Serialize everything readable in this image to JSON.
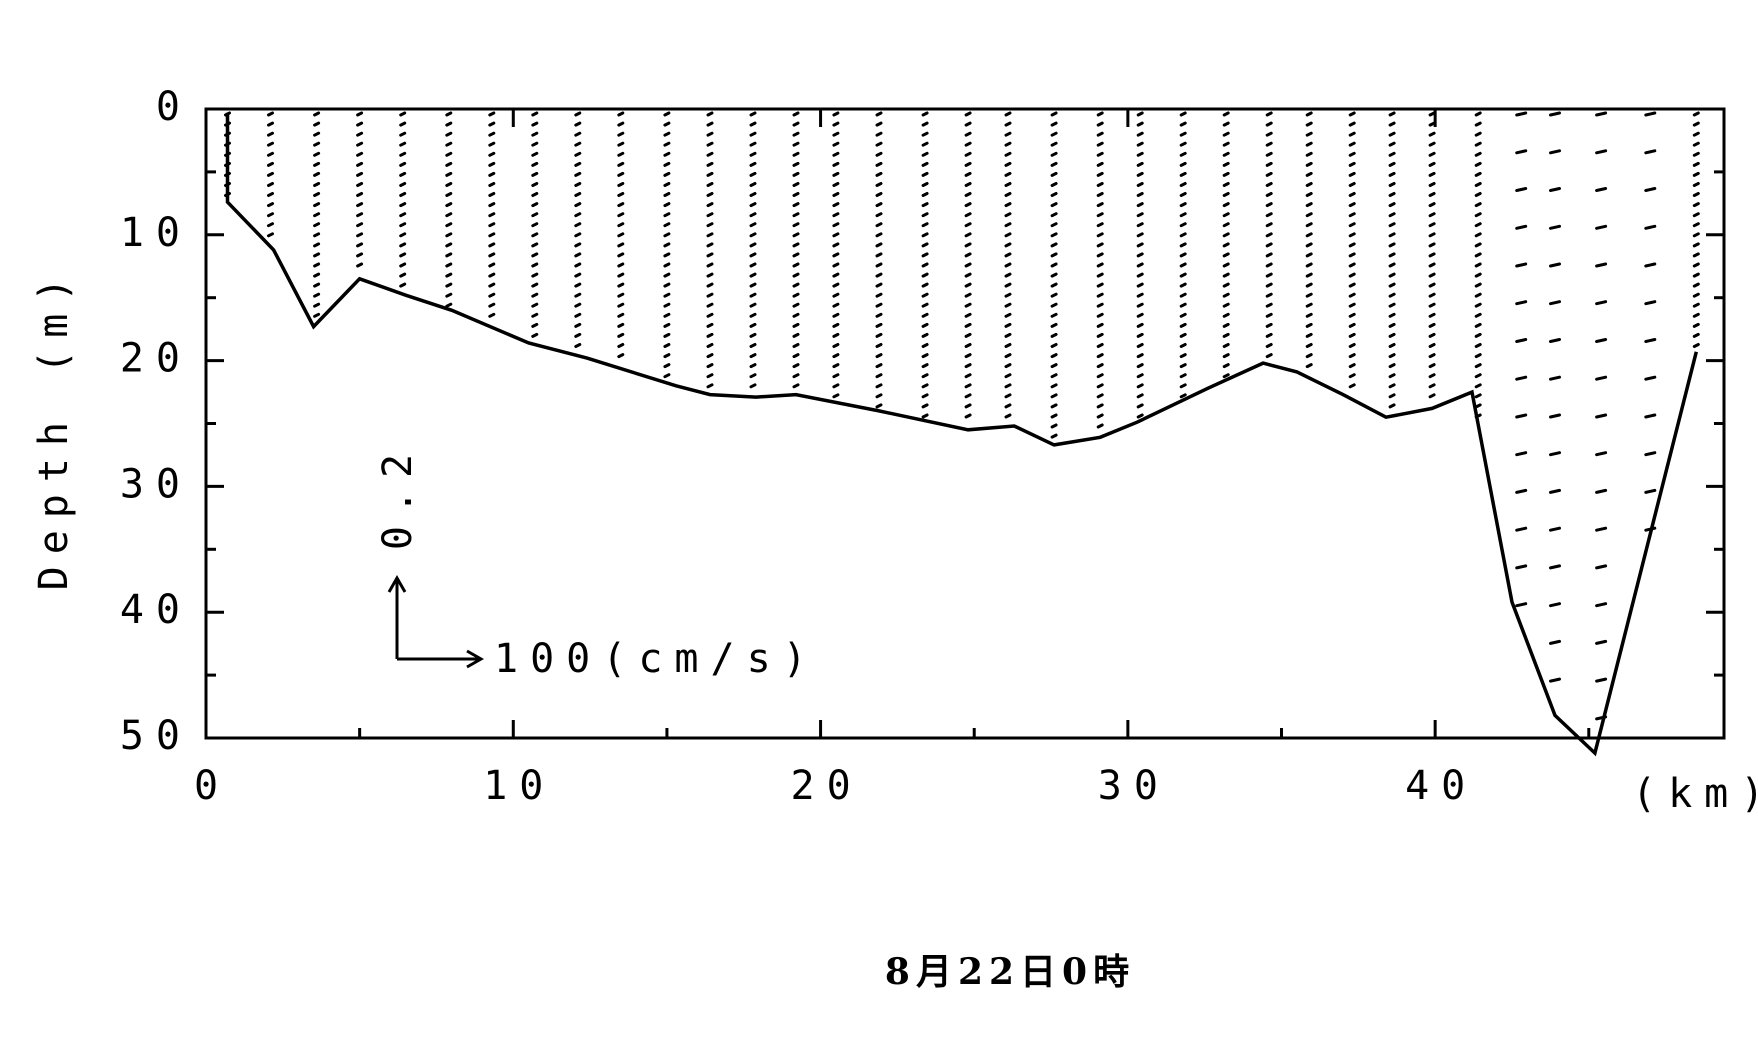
{
  "chart_data": {
    "type": "vector_section",
    "y_label": "Depth (m)",
    "x_unit_label": "(km)",
    "caption": "8月22日0時",
    "scale_vertical_label": "0.2",
    "scale_horizontal_label": "100(cm/s)",
    "xlim": [
      0,
      49.4
    ],
    "ylim": [
      0,
      50
    ],
    "xticks": [
      0,
      10,
      20,
      30,
      40
    ],
    "yticks": [
      0,
      10,
      20,
      30,
      40,
      50
    ],
    "y_inverted": true,
    "bottom_x": [
      0.7,
      0.7,
      2.2,
      3.5,
      5.0,
      6.5,
      8.0,
      10.5,
      12.4,
      15.3,
      16.4,
      17.9,
      19.2,
      21.9,
      24.8,
      26.3,
      27.6,
      29.1,
      30.3,
      32.6,
      34.4,
      35.5,
      37.0,
      38.4,
      39.9,
      41.2,
      42.5,
      43.9,
      45.2,
      48.5
    ],
    "bottom_depth": [
      0.3,
      7.4,
      11.2,
      17.3,
      13.5,
      14.8,
      16.0,
      18.6,
      19.8,
      22.0,
      22.7,
      22.9,
      22.7,
      24.0,
      25.5,
      25.2,
      26.7,
      26.1,
      24.9,
      22.2,
      20.2,
      20.9,
      22.7,
      24.5,
      23.8,
      22.5,
      39.2,
      48.2,
      51.2,
      19.3
    ],
    "stations": [
      0.7,
      2.1,
      3.6,
      5.0,
      6.4,
      7.9,
      9.3,
      10.7,
      12.1,
      13.5,
      15.0,
      16.4,
      17.8,
      19.2,
      20.5,
      21.9,
      23.4,
      24.8,
      26.1,
      27.6,
      29.1,
      30.4,
      31.8,
      33.2,
      34.6,
      35.9,
      37.3,
      38.6,
      39.9,
      41.4,
      42.8,
      43.9,
      45.4,
      47.0,
      48.5
    ],
    "color": "#000000"
  }
}
